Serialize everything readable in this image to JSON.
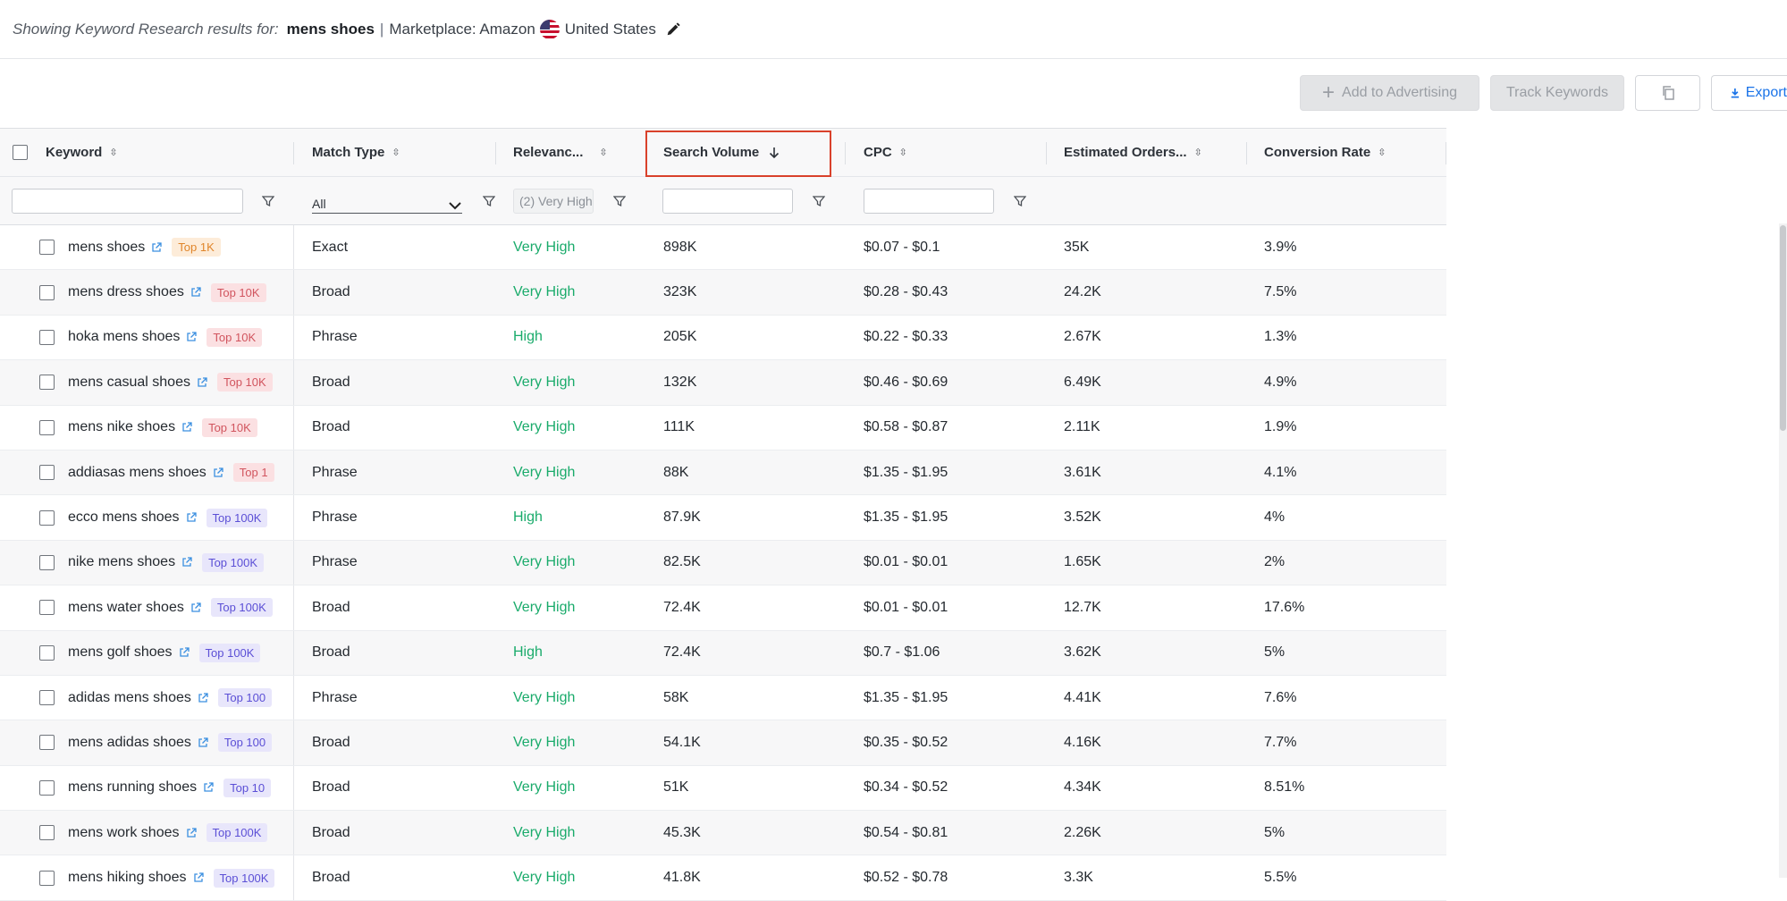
{
  "header": {
    "prefix": "Showing Keyword Research results for:",
    "keyword": "mens shoes",
    "separator": "|",
    "marketplace": "Marketplace: Amazon",
    "country": "United States"
  },
  "toolbar": {
    "add_to_advertising": "Add to Advertising",
    "track_keywords": "Track Keywords",
    "export": "Export"
  },
  "columns": {
    "keyword": "Keyword",
    "match_type": "Match Type",
    "relevance": "Relevanc...",
    "search_volume": "Search Volume",
    "cpc": "CPC",
    "estimated_orders": "Estimated Orders...",
    "conversion_rate": "Conversion Rate"
  },
  "filters": {
    "match_type_value": "All",
    "relevance_value": "(2) Very High"
  },
  "rows": [
    {
      "keyword": "mens shoes",
      "badge": "Top 1K",
      "match": "Exact",
      "relevance": "Very High",
      "volume": "898K",
      "cpc": "$0.07 - $0.1",
      "orders": "35K",
      "conv": "3.9%"
    },
    {
      "keyword": "mens dress shoes",
      "badge": "Top 10K",
      "match": "Broad",
      "relevance": "Very High",
      "volume": "323K",
      "cpc": "$0.28 - $0.43",
      "orders": "24.2K",
      "conv": "7.5%"
    },
    {
      "keyword": "hoka mens shoes",
      "badge": "Top 10K",
      "match": "Phrase",
      "relevance": "High",
      "volume": "205K",
      "cpc": "$0.22 - $0.33",
      "orders": "2.67K",
      "conv": "1.3%"
    },
    {
      "keyword": "mens casual shoes",
      "badge": "Top 10K",
      "match": "Broad",
      "relevance": "Very High",
      "volume": "132K",
      "cpc": "$0.46 - $0.69",
      "orders": "6.49K",
      "conv": "4.9%"
    },
    {
      "keyword": "mens nike shoes",
      "badge": "Top 10K",
      "match": "Broad",
      "relevance": "Very High",
      "volume": "111K",
      "cpc": "$0.58 - $0.87",
      "orders": "2.11K",
      "conv": "1.9%"
    },
    {
      "keyword": "addiasas mens shoes",
      "badge": "Top 1",
      "match": "Phrase",
      "relevance": "Very High",
      "volume": "88K",
      "cpc": "$1.35 - $1.95",
      "orders": "3.61K",
      "conv": "4.1%"
    },
    {
      "keyword": "ecco mens shoes",
      "badge": "Top 100K",
      "match": "Phrase",
      "relevance": "High",
      "volume": "87.9K",
      "cpc": "$1.35 - $1.95",
      "orders": "3.52K",
      "conv": "4%"
    },
    {
      "keyword": "nike mens shoes",
      "badge": "Top 100K",
      "match": "Phrase",
      "relevance": "Very High",
      "volume": "82.5K",
      "cpc": "$0.01 - $0.01",
      "orders": "1.65K",
      "conv": "2%"
    },
    {
      "keyword": "mens water shoes",
      "badge": "Top 100K",
      "match": "Broad",
      "relevance": "Very High",
      "volume": "72.4K",
      "cpc": "$0.01 - $0.01",
      "orders": "12.7K",
      "conv": "17.6%"
    },
    {
      "keyword": "mens golf shoes",
      "badge": "Top 100K",
      "match": "Broad",
      "relevance": "High",
      "volume": "72.4K",
      "cpc": "$0.7 - $1.06",
      "orders": "3.62K",
      "conv": "5%"
    },
    {
      "keyword": "adidas mens shoes",
      "badge": "Top 100",
      "match": "Phrase",
      "relevance": "Very High",
      "volume": "58K",
      "cpc": "$1.35 - $1.95",
      "orders": "4.41K",
      "conv": "7.6%"
    },
    {
      "keyword": "mens adidas shoes",
      "badge": "Top 100",
      "match": "Broad",
      "relevance": "Very High",
      "volume": "54.1K",
      "cpc": "$0.35 - $0.52",
      "orders": "4.16K",
      "conv": "7.7%"
    },
    {
      "keyword": "mens running shoes",
      "badge": "Top 10",
      "match": "Broad",
      "relevance": "Very High",
      "volume": "51K",
      "cpc": "$0.34 - $0.52",
      "orders": "4.34K",
      "conv": "8.51%"
    },
    {
      "keyword": "mens work shoes",
      "badge": "Top 100K",
      "match": "Broad",
      "relevance": "Very High",
      "volume": "45.3K",
      "cpc": "$0.54 - $0.81",
      "orders": "2.26K",
      "conv": "5%"
    },
    {
      "keyword": "mens hiking shoes",
      "badge": "Top 100K",
      "match": "Broad",
      "relevance": "Very High",
      "volume": "41.8K",
      "cpc": "$0.52 - $0.78",
      "orders": "3.3K",
      "conv": "5.5%"
    }
  ],
  "colors": {
    "accent": "#1a73e8",
    "relevance_green": "#1aab6b",
    "highlight_red": "#d9412b",
    "badge_orange": "#e0852a",
    "badge_red": "#d1545e",
    "badge_purple": "#5b4fd6"
  }
}
